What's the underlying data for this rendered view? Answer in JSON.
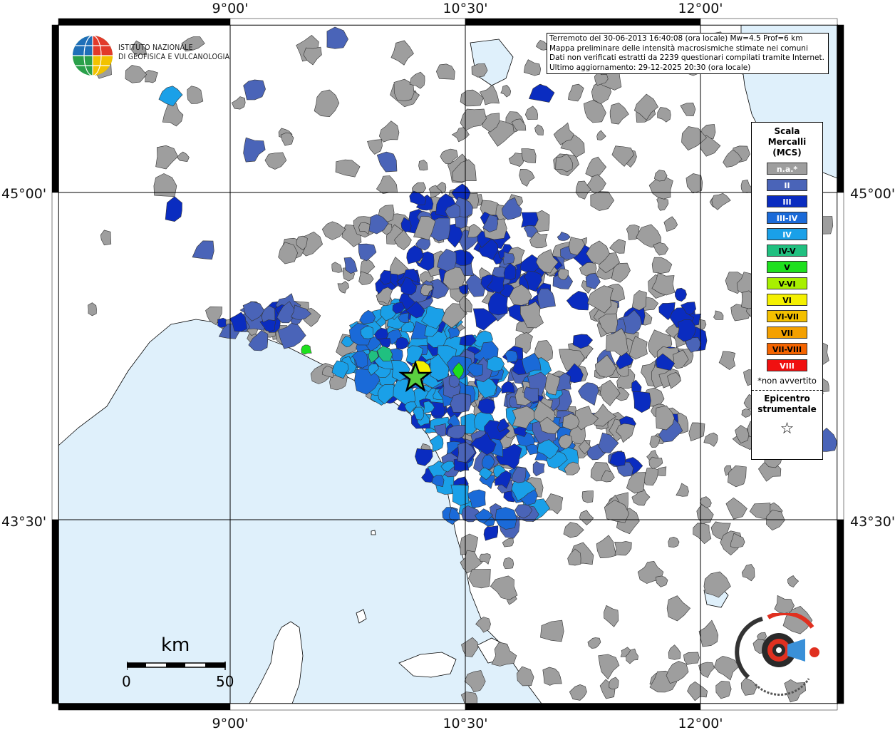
{
  "axis": {
    "top_labels": [
      "9°00'",
      "10°30'",
      "12°00'"
    ],
    "bottom_labels": [
      "9°00'",
      "10°30'",
      "12°00'"
    ],
    "left_labels": [
      "45°00'",
      "43°30'"
    ],
    "right_labels": [
      "45°00'",
      "43°30'"
    ]
  },
  "info": {
    "line1": "Terremoto del 30-06-2013 16:40:08 (ora locale) Mw=4.5 Prof=6 km",
    "line2": "Mappa preliminare delle intensità macrosismiche stimate nei comuni",
    "line3": "Dati non verificati estratti da 2239 questionari compilati tramite Internet.",
    "line4": "Ultimo aggiornamento: 29-12-2025 20:30 (ora locale)"
  },
  "logo": {
    "line1": "ISTITUTO NAZIONALE",
    "line2": "DI GEOFISICA E VULCANOLOGIA"
  },
  "legend": {
    "title_line1": "Scala",
    "title_line2": "Mercalli",
    "title_line3": "(MCS)",
    "items": [
      {
        "label": "n.a.*",
        "color": "#9e9e9e",
        "text_color": "#ffffff"
      },
      {
        "label": "II",
        "color": "#4a64b8",
        "text_color": "#ffffff"
      },
      {
        "label": "III",
        "color": "#0a2cc0",
        "text_color": "#ffffff"
      },
      {
        "label": "III-IV",
        "color": "#1a6ad8",
        "text_color": "#ffffff"
      },
      {
        "label": "IV",
        "color": "#1aa0e8",
        "text_color": "#ffffff"
      },
      {
        "label": "IV-V",
        "color": "#20c080",
        "text_color": "#000000"
      },
      {
        "label": "V",
        "color": "#1ee01e",
        "text_color": "#000000"
      },
      {
        "label": "V-VI",
        "color": "#a8f000",
        "text_color": "#000000"
      },
      {
        "label": "VI",
        "color": "#f4f000",
        "text_color": "#000000"
      },
      {
        "label": "VI-VII",
        "color": "#f4c000",
        "text_color": "#000000"
      },
      {
        "label": "VII",
        "color": "#f4a000",
        "text_color": "#000000"
      },
      {
        "label": "VII-VIII",
        "color": "#f46400",
        "text_color": "#000000"
      },
      {
        "label": "VIII",
        "color": "#f01010",
        "text_color": "#ffffff"
      }
    ],
    "note": "*non avvertito",
    "epicenter_line1": "Epicentro",
    "epicenter_line2": "strumentale",
    "star": "☆"
  },
  "scale": {
    "unit": "km",
    "min": "0",
    "max": "50"
  },
  "colors": {
    "sea": "#dff0fb",
    "land": "#ffffff",
    "na": "#9e9e9e"
  }
}
